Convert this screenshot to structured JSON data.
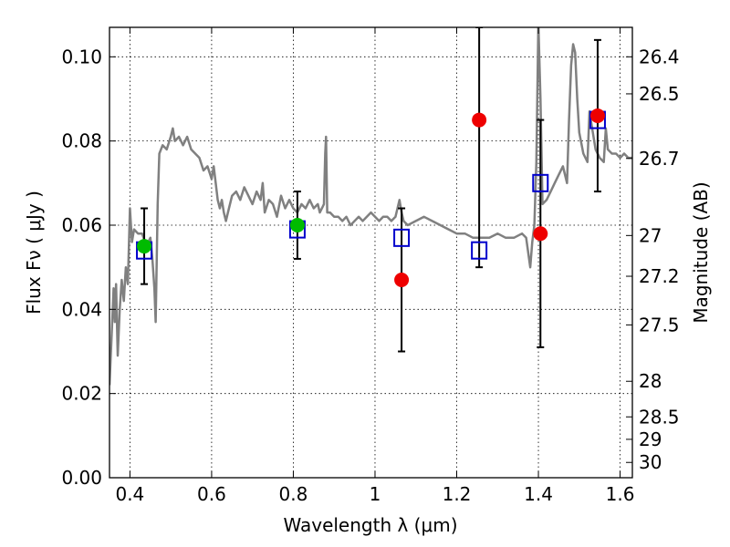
{
  "chart_data": {
    "type": "scatter",
    "xlabel": "Wavelength  λ (μm)",
    "ylabel": "Flux  Fν ( μJy )",
    "ylabel_right": "Magnitude (AB)",
    "xlim": [
      0.35,
      1.63
    ],
    "ylim": [
      0.0,
      0.107
    ],
    "grid": true,
    "x_ticks": [
      0.4,
      0.6,
      0.8,
      1.0,
      1.2,
      1.4,
      1.6
    ],
    "x_tick_labels": [
      "0.4",
      "0.6",
      "0.8",
      "1",
      "1.2",
      "1.4",
      "1.6"
    ],
    "y_ticks": [
      0.0,
      0.02,
      0.04,
      0.06,
      0.08,
      0.1
    ],
    "y_tick_labels": [
      "0.00",
      "0.02",
      "0.04",
      "0.06",
      "0.08",
      "0.10"
    ],
    "mag_ticks": [
      26.4,
      26.5,
      26.7,
      27,
      27.2,
      27.5,
      28,
      28.5,
      29,
      30
    ],
    "mag_tick_labels": [
      "26.4",
      "26.5",
      "26.7",
      "27",
      "27.2",
      "27.5",
      "28",
      "28.5",
      "29",
      "30"
    ],
    "model_spectrum": {
      "color": "#808080",
      "points": [
        [
          0.35,
          0.022
        ],
        [
          0.355,
          0.033
        ],
        [
          0.36,
          0.045
        ],
        [
          0.363,
          0.037
        ],
        [
          0.366,
          0.046
        ],
        [
          0.37,
          0.029
        ],
        [
          0.375,
          0.04
        ],
        [
          0.38,
          0.047
        ],
        [
          0.385,
          0.042
        ],
        [
          0.39,
          0.05
        ],
        [
          0.395,
          0.046
        ],
        [
          0.4,
          0.064
        ],
        [
          0.405,
          0.056
        ],
        [
          0.41,
          0.059
        ],
        [
          0.42,
          0.058
        ],
        [
          0.43,
          0.058
        ],
        [
          0.44,
          0.055
        ],
        [
          0.45,
          0.057
        ],
        [
          0.455,
          0.052
        ],
        [
          0.46,
          0.045
        ],
        [
          0.463,
          0.037
        ],
        [
          0.468,
          0.065
        ],
        [
          0.472,
          0.077
        ],
        [
          0.48,
          0.079
        ],
        [
          0.49,
          0.078
        ],
        [
          0.5,
          0.081
        ],
        [
          0.505,
          0.083
        ],
        [
          0.51,
          0.08
        ],
        [
          0.52,
          0.081
        ],
        [
          0.53,
          0.079
        ],
        [
          0.54,
          0.081
        ],
        [
          0.55,
          0.078
        ],
        [
          0.56,
          0.077
        ],
        [
          0.57,
          0.076
        ],
        [
          0.58,
          0.073
        ],
        [
          0.59,
          0.074
        ],
        [
          0.6,
          0.071
        ],
        [
          0.605,
          0.074
        ],
        [
          0.61,
          0.07
        ],
        [
          0.615,
          0.066
        ],
        [
          0.62,
          0.064
        ],
        [
          0.625,
          0.066
        ],
        [
          0.63,
          0.063
        ],
        [
          0.635,
          0.061
        ],
        [
          0.64,
          0.063
        ],
        [
          0.65,
          0.067
        ],
        [
          0.66,
          0.068
        ],
        [
          0.67,
          0.066
        ],
        [
          0.68,
          0.069
        ],
        [
          0.69,
          0.067
        ],
        [
          0.7,
          0.065
        ],
        [
          0.71,
          0.068
        ],
        [
          0.72,
          0.066
        ],
        [
          0.725,
          0.07
        ],
        [
          0.73,
          0.063
        ],
        [
          0.74,
          0.066
        ],
        [
          0.75,
          0.065
        ],
        [
          0.76,
          0.062
        ],
        [
          0.77,
          0.067
        ],
        [
          0.78,
          0.064
        ],
        [
          0.79,
          0.066
        ],
        [
          0.8,
          0.064
        ],
        [
          0.81,
          0.063
        ],
        [
          0.82,
          0.065
        ],
        [
          0.83,
          0.064
        ],
        [
          0.84,
          0.066
        ],
        [
          0.85,
          0.064
        ],
        [
          0.86,
          0.065
        ],
        [
          0.865,
          0.063
        ],
        [
          0.87,
          0.064
        ],
        [
          0.875,
          0.065
        ],
        [
          0.878,
          0.077
        ],
        [
          0.88,
          0.081
        ],
        [
          0.883,
          0.063
        ],
        [
          0.89,
          0.063
        ],
        [
          0.9,
          0.062
        ],
        [
          0.91,
          0.062
        ],
        [
          0.92,
          0.061
        ],
        [
          0.93,
          0.062
        ],
        [
          0.94,
          0.06
        ],
        [
          0.95,
          0.061
        ],
        [
          0.96,
          0.062
        ],
        [
          0.97,
          0.061
        ],
        [
          0.98,
          0.062
        ],
        [
          0.99,
          0.063
        ],
        [
          1.0,
          0.062
        ],
        [
          1.01,
          0.061
        ],
        [
          1.02,
          0.062
        ],
        [
          1.03,
          0.062
        ],
        [
          1.04,
          0.061
        ],
        [
          1.05,
          0.062
        ],
        [
          1.055,
          0.064
        ],
        [
          1.06,
          0.066
        ],
        [
          1.065,
          0.063
        ],
        [
          1.07,
          0.061
        ],
        [
          1.08,
          0.06
        ],
        [
          1.1,
          0.061
        ],
        [
          1.12,
          0.062
        ],
        [
          1.14,
          0.061
        ],
        [
          1.16,
          0.06
        ],
        [
          1.18,
          0.059
        ],
        [
          1.2,
          0.058
        ],
        [
          1.22,
          0.058
        ],
        [
          1.24,
          0.057
        ],
        [
          1.26,
          0.057
        ],
        [
          1.28,
          0.057
        ],
        [
          1.3,
          0.058
        ],
        [
          1.32,
          0.057
        ],
        [
          1.34,
          0.057
        ],
        [
          1.36,
          0.058
        ],
        [
          1.37,
          0.057
        ],
        [
          1.38,
          0.05
        ],
        [
          1.385,
          0.056
        ],
        [
          1.39,
          0.06
        ],
        [
          1.395,
          0.075
        ],
        [
          1.4,
          0.108
        ],
        [
          1.405,
          0.09
        ],
        [
          1.41,
          0.065
        ],
        [
          1.42,
          0.066
        ],
        [
          1.43,
          0.068
        ],
        [
          1.44,
          0.07
        ],
        [
          1.45,
          0.072
        ],
        [
          1.46,
          0.074
        ],
        [
          1.47,
          0.07
        ],
        [
          1.475,
          0.085
        ],
        [
          1.48,
          0.098
        ],
        [
          1.485,
          0.103
        ],
        [
          1.49,
          0.101
        ],
        [
          1.495,
          0.09
        ],
        [
          1.5,
          0.082
        ],
        [
          1.51,
          0.077
        ],
        [
          1.52,
          0.075
        ],
        [
          1.525,
          0.087
        ],
        [
          1.53,
          0.084
        ],
        [
          1.54,
          0.078
        ],
        [
          1.55,
          0.076
        ],
        [
          1.56,
          0.075
        ],
        [
          1.565,
          0.083
        ],
        [
          1.57,
          0.078
        ],
        [
          1.58,
          0.077
        ],
        [
          1.59,
          0.077
        ],
        [
          1.6,
          0.076
        ],
        [
          1.61,
          0.077
        ],
        [
          1.62,
          0.076
        ],
        [
          1.63,
          0.076
        ]
      ]
    },
    "series": [
      {
        "marker": "square-open",
        "color": "#0000cc",
        "points": [
          [
            0.435,
            0.054
          ],
          [
            0.81,
            0.059
          ],
          [
            1.065,
            0.057
          ],
          [
            1.255,
            0.054
          ],
          [
            1.405,
            0.07
          ],
          [
            1.545,
            0.085
          ]
        ]
      },
      {
        "marker": "circle-filled",
        "color": "#00bb00",
        "points": [
          [
            0.435,
            0.055
          ],
          [
            0.81,
            0.06
          ]
        ],
        "error_low": [
          0.046,
          0.052
        ],
        "error_high": [
          0.064,
          0.068
        ]
      },
      {
        "marker": "circle-filled",
        "color": "#ee0000",
        "points": [
          [
            1.065,
            0.047
          ],
          [
            1.255,
            0.085
          ],
          [
            1.405,
            0.058
          ],
          [
            1.545,
            0.086
          ]
        ],
        "error_low": [
          0.03,
          0.05,
          0.031,
          0.068
        ],
        "error_high": [
          0.064,
          0.107,
          0.085,
          0.104
        ]
      }
    ]
  }
}
